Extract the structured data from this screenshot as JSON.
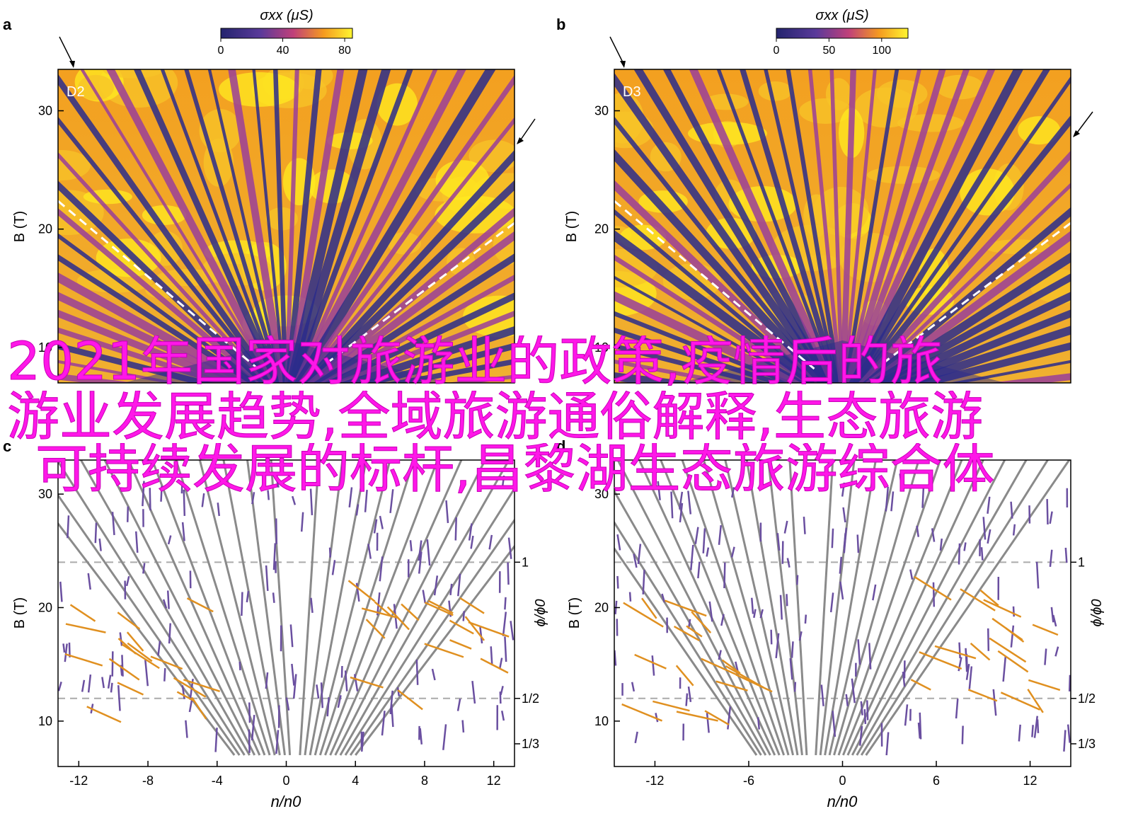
{
  "colors": {
    "map_low": "#2b2c8c",
    "map_mid": "#9a3f9a",
    "map_high": "#ffeb20",
    "gray_line": "#8a8a8a",
    "purple_line": "#6a4fa0",
    "orange_line": "#e09020",
    "overlay_text": "#ff17e8"
  },
  "overlay": {
    "line1": "2021年国家对旅游业的政策,疫情后的旅",
    "line2": "游业发展趋势,全域旅游通俗解释,生态旅游",
    "line3": "可持续发展的标杆,昌黎湖生态旅游综合体"
  },
  "chart_data": [
    {
      "panel": "a",
      "type": "heatmap",
      "label": "D2",
      "colorbar_label": "σxx (μS)",
      "colorbar_ticks": [
        "0",
        "40",
        "80"
      ],
      "colorbar_range": [
        0,
        85
      ],
      "xlim": [
        -13.2,
        13.2
      ],
      "ylim": [
        7,
        33.5
      ],
      "yticks": [
        "10",
        "20",
        "30"
      ],
      "ylabel": "B (T)",
      "fan_origin_x": 0.5,
      "dashed_boundary": true,
      "arrows": [
        "top-left",
        "right"
      ]
    },
    {
      "panel": "b",
      "type": "heatmap",
      "label": "D3",
      "colorbar_label": "σxx (μS)",
      "colorbar_ticks": [
        "0",
        "50",
        "100"
      ],
      "colorbar_range": [
        0,
        125
      ],
      "xlim": [
        -13,
        13
      ],
      "ylim": [
        7,
        33.5
      ],
      "yticks": [
        "10",
        "20",
        "30"
      ],
      "ylabel": "B (T)",
      "fan_origin_x": 0.5,
      "dashed_boundary": true,
      "arrows": [
        "top-left",
        "right"
      ]
    },
    {
      "panel": "c",
      "type": "line",
      "xlim": [
        -13.2,
        13.2
      ],
      "ylim": [
        6,
        33
      ],
      "xticks": [
        "-12",
        "-8",
        "-4",
        "0",
        "4",
        "8",
        "12"
      ],
      "yticks": [
        "10",
        "20",
        "30"
      ],
      "xlabel": "n/n0",
      "ylabel": "B (T)",
      "right_axis_label": "ϕ/ϕ0",
      "right_ticks": [
        {
          "label": "1",
          "B": 24
        },
        {
          "label": "1/2",
          "B": 12
        },
        {
          "label": "1/3",
          "B": 8
        }
      ],
      "dashed_B": [
        24,
        12
      ],
      "fan_origin": 0.5,
      "fan_slopes": [
        -12,
        -11,
        -10,
        -9,
        -8,
        -7,
        -6,
        -5,
        -4,
        -3,
        -2,
        -1,
        1,
        2,
        3,
        4,
        5,
        6,
        7,
        8,
        9,
        10,
        11,
        12
      ]
    },
    {
      "panel": "d",
      "type": "line",
      "xlim": [
        -14.6,
        14.6
      ],
      "ylim": [
        6,
        33
      ],
      "xticks": [
        "-12",
        "-6",
        "0",
        "6",
        "12"
      ],
      "yticks": [
        "10",
        "20",
        "30"
      ],
      "xlabel": "n/n0",
      "ylabel": "B (T)",
      "right_axis_label": "ϕ/ϕ0",
      "right_ticks": [
        {
          "label": "1",
          "B": 24
        },
        {
          "label": "1/2",
          "B": 12
        },
        {
          "label": "1/3",
          "B": 8
        }
      ],
      "dashed_B": [
        24,
        12
      ],
      "fan_origin": -2,
      "fan_slopes": [
        -12,
        -11,
        -10,
        -9,
        -8,
        -7,
        -6,
        -5,
        -4,
        -3,
        -2,
        -1,
        1,
        2,
        3,
        4,
        5,
        6,
        7,
        8,
        9,
        10,
        11,
        12
      ]
    }
  ],
  "panel_letters": [
    "a",
    "b",
    "c",
    "d"
  ]
}
